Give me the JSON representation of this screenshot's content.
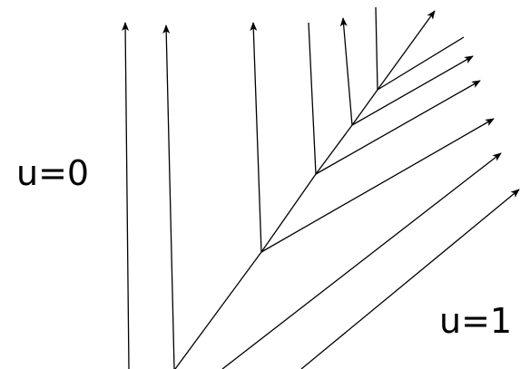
{
  "labels": {
    "left_region": "u=0",
    "right_region": "u=1"
  },
  "colors": {
    "ink": "#000000",
    "background": "#ffffff"
  }
}
